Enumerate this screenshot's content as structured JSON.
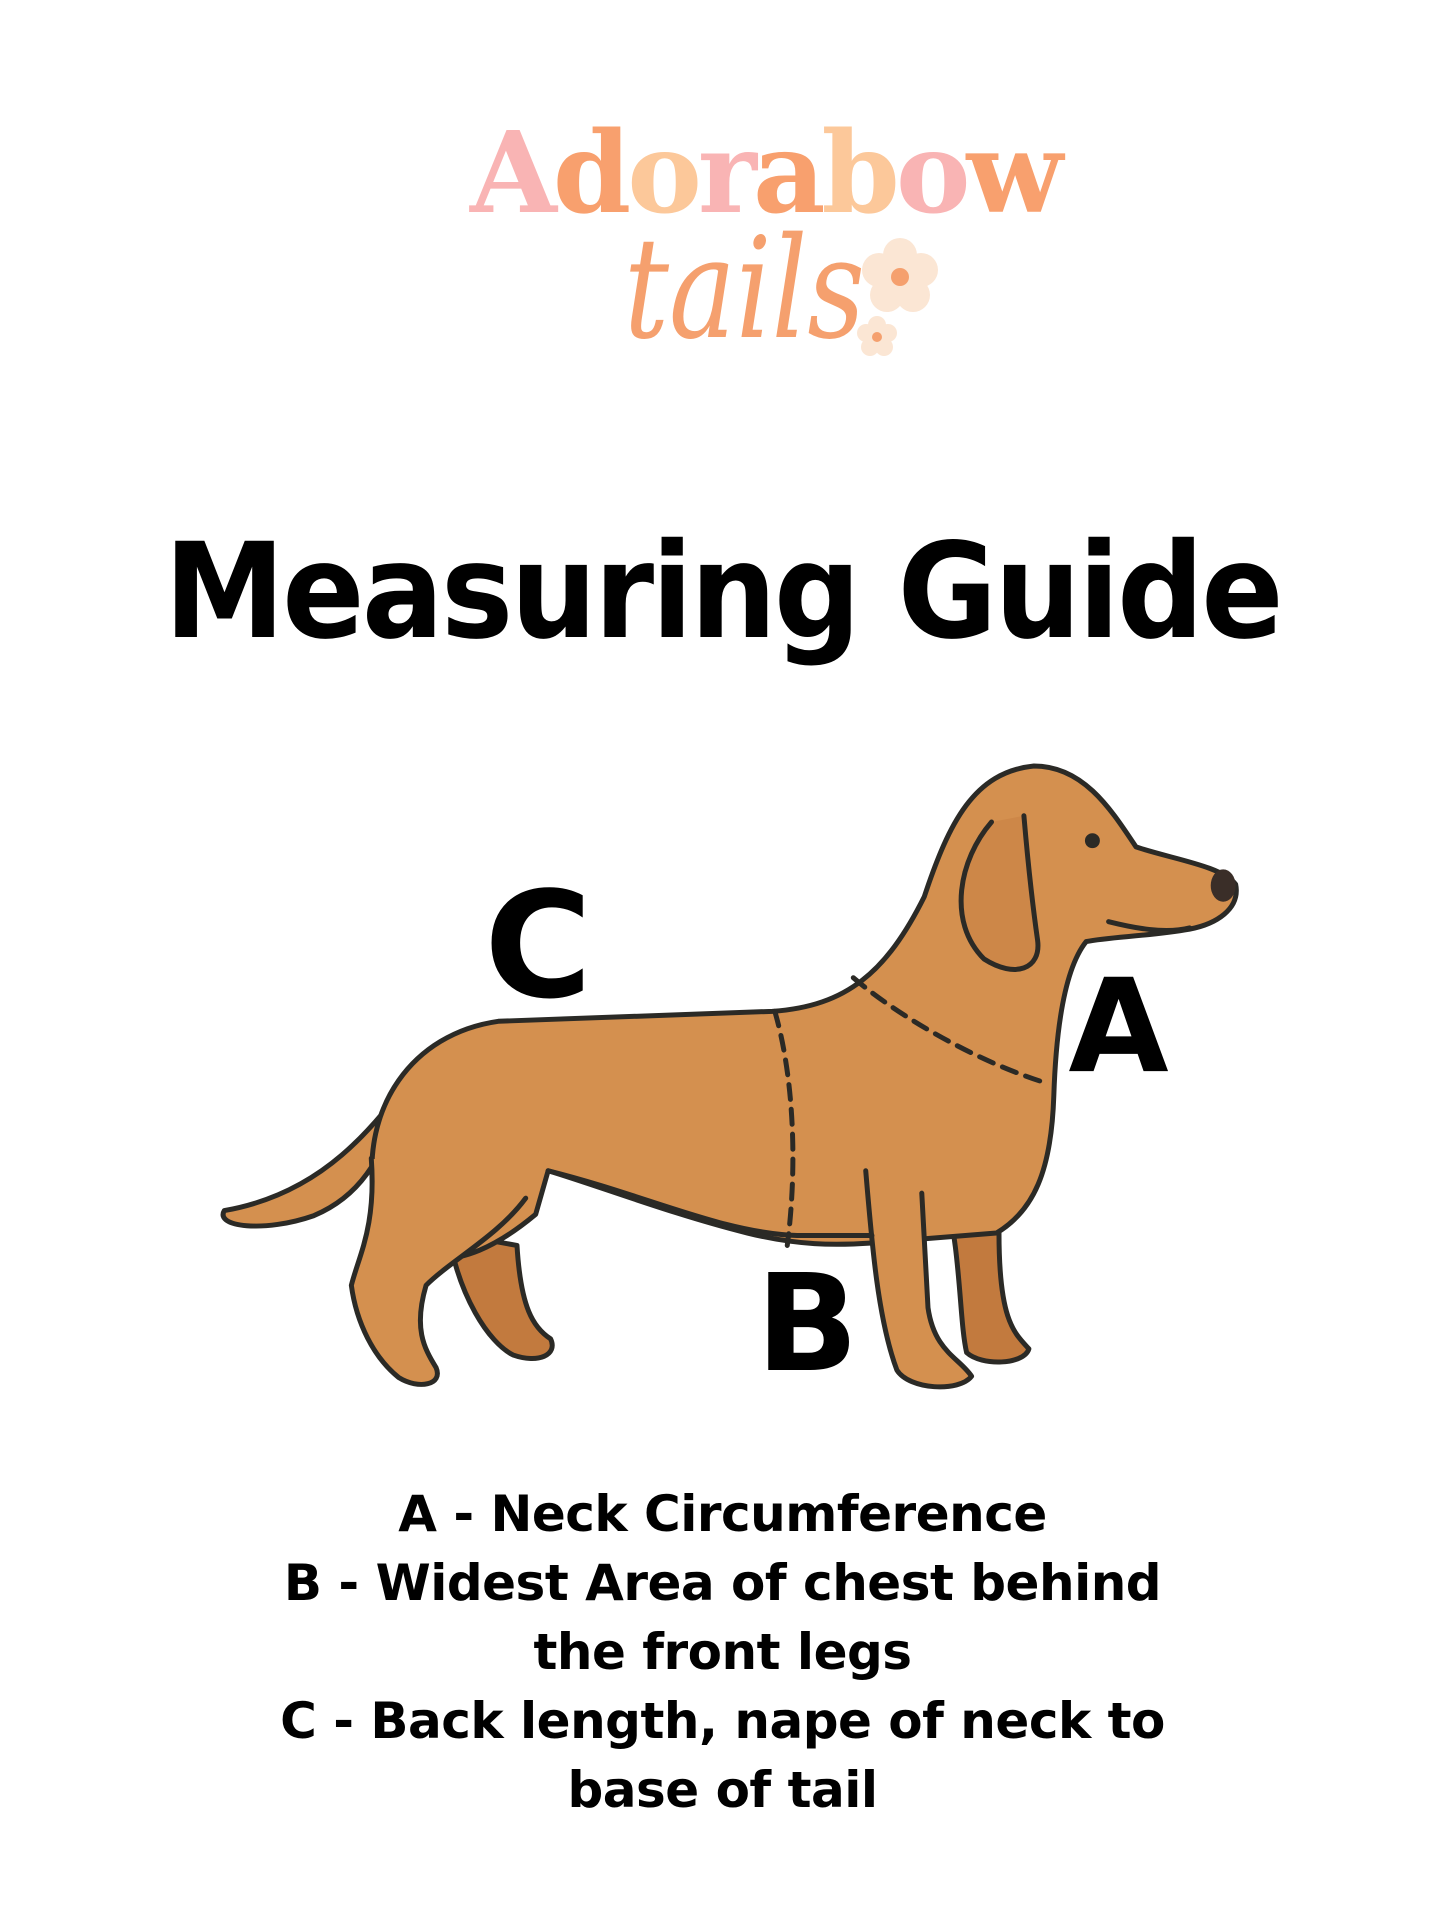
{
  "logo": {
    "word": "Adorabow",
    "script": "tails",
    "letter_colors": [
      "#f9b4b4",
      "#f8a06e",
      "#fcc89a",
      "#f9b4b4",
      "#f8a06e",
      "#fcc89a",
      "#f9b4b4",
      "#f8a06e"
    ],
    "flower_color": "#fbe6d4",
    "flower_center": "#f5a06e"
  },
  "title": "Measuring Guide",
  "diagram": {
    "labels": {
      "a": "A",
      "b": "B",
      "c": "C"
    },
    "dog_color": "#d4904f",
    "dog_shadow_color": "#c27a3e",
    "outline_color": "#2b2a26"
  },
  "guide": {
    "lines": [
      "A - Neck Circumference",
      "B - Widest Area of chest behind",
      "the front legs",
      "C - Back length, nape of neck to",
      "base of tail"
    ]
  }
}
